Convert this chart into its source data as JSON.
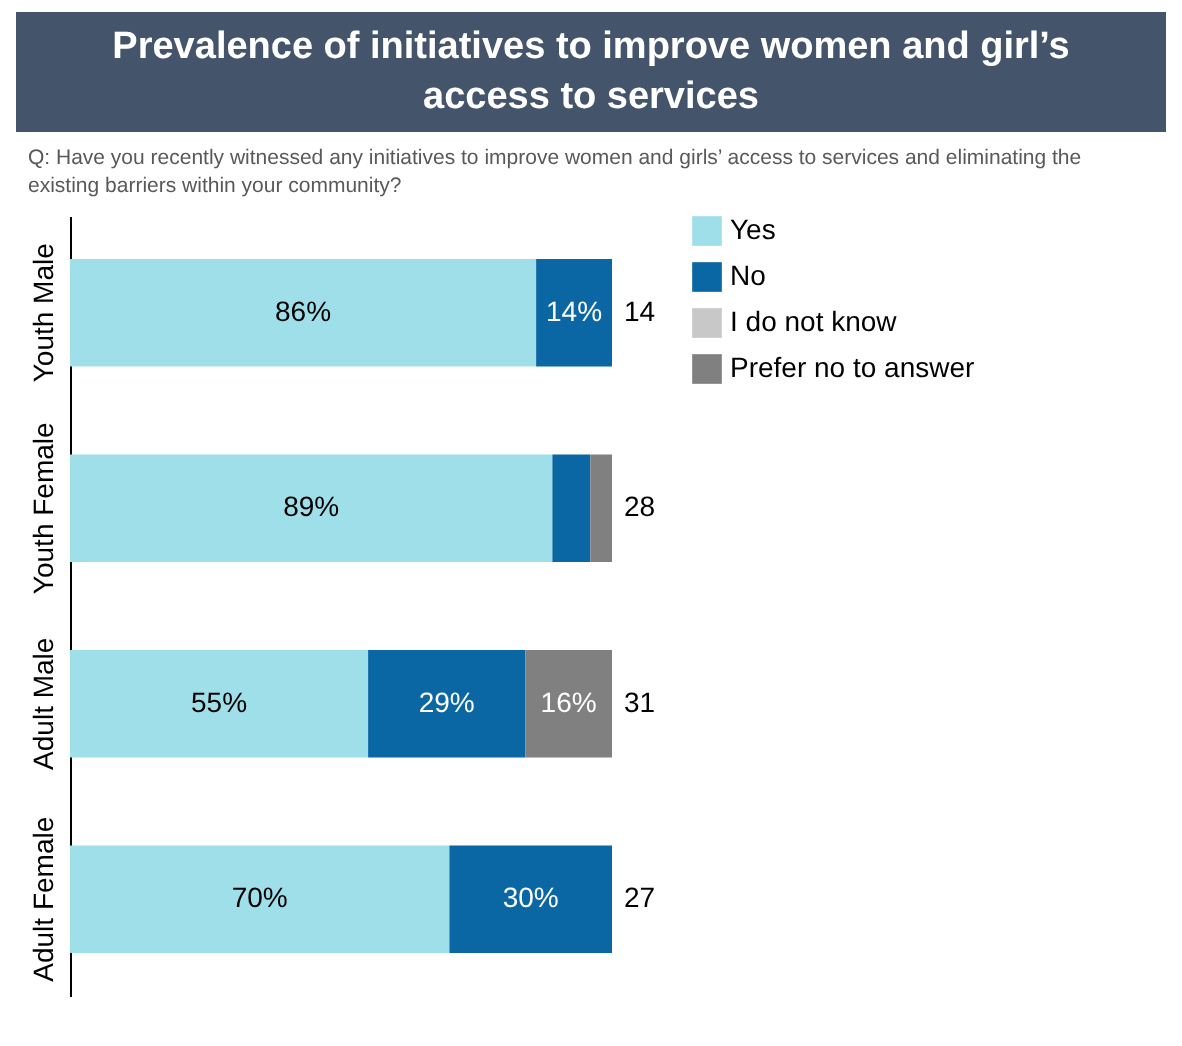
{
  "chart_data": {
    "type": "bar",
    "orientation": "horizontal",
    "stacked": true,
    "title": "Prevalence of initiatives to improve women and girl’s access to services",
    "subtitle": "Q: Have you recently witnessed any initiatives to improve women and girls’ access to services and eliminating the existing barriers within your community?",
    "categories": [
      "Youth Male",
      "Youth Female",
      "Adult Male",
      "Adult Female"
    ],
    "series": [
      {
        "name": "Yes",
        "color": "#9edfea",
        "values": [
          86,
          89,
          55,
          70
        ],
        "value_labels": [
          "86%",
          "89%",
          "55%",
          "70%"
        ]
      },
      {
        "name": "No",
        "color": "#0b67a3",
        "values": [
          14,
          7,
          29,
          30
        ],
        "value_labels": [
          "14%",
          null,
          "29%",
          "30%"
        ]
      },
      {
        "name": "I do not know",
        "color": "#c8c8c8",
        "values": [
          0,
          0,
          0,
          0
        ],
        "value_labels": [
          null,
          null,
          null,
          null
        ]
      },
      {
        "name": "Prefer no to answer",
        "color": "#808080",
        "values": [
          0,
          4,
          16,
          0
        ],
        "value_labels": [
          null,
          null,
          "16%",
          null
        ]
      }
    ],
    "annotations": [
      "14",
      "28",
      "31",
      "27"
    ],
    "legend": "top right",
    "tick_labels": "y",
    "grid": false
  }
}
